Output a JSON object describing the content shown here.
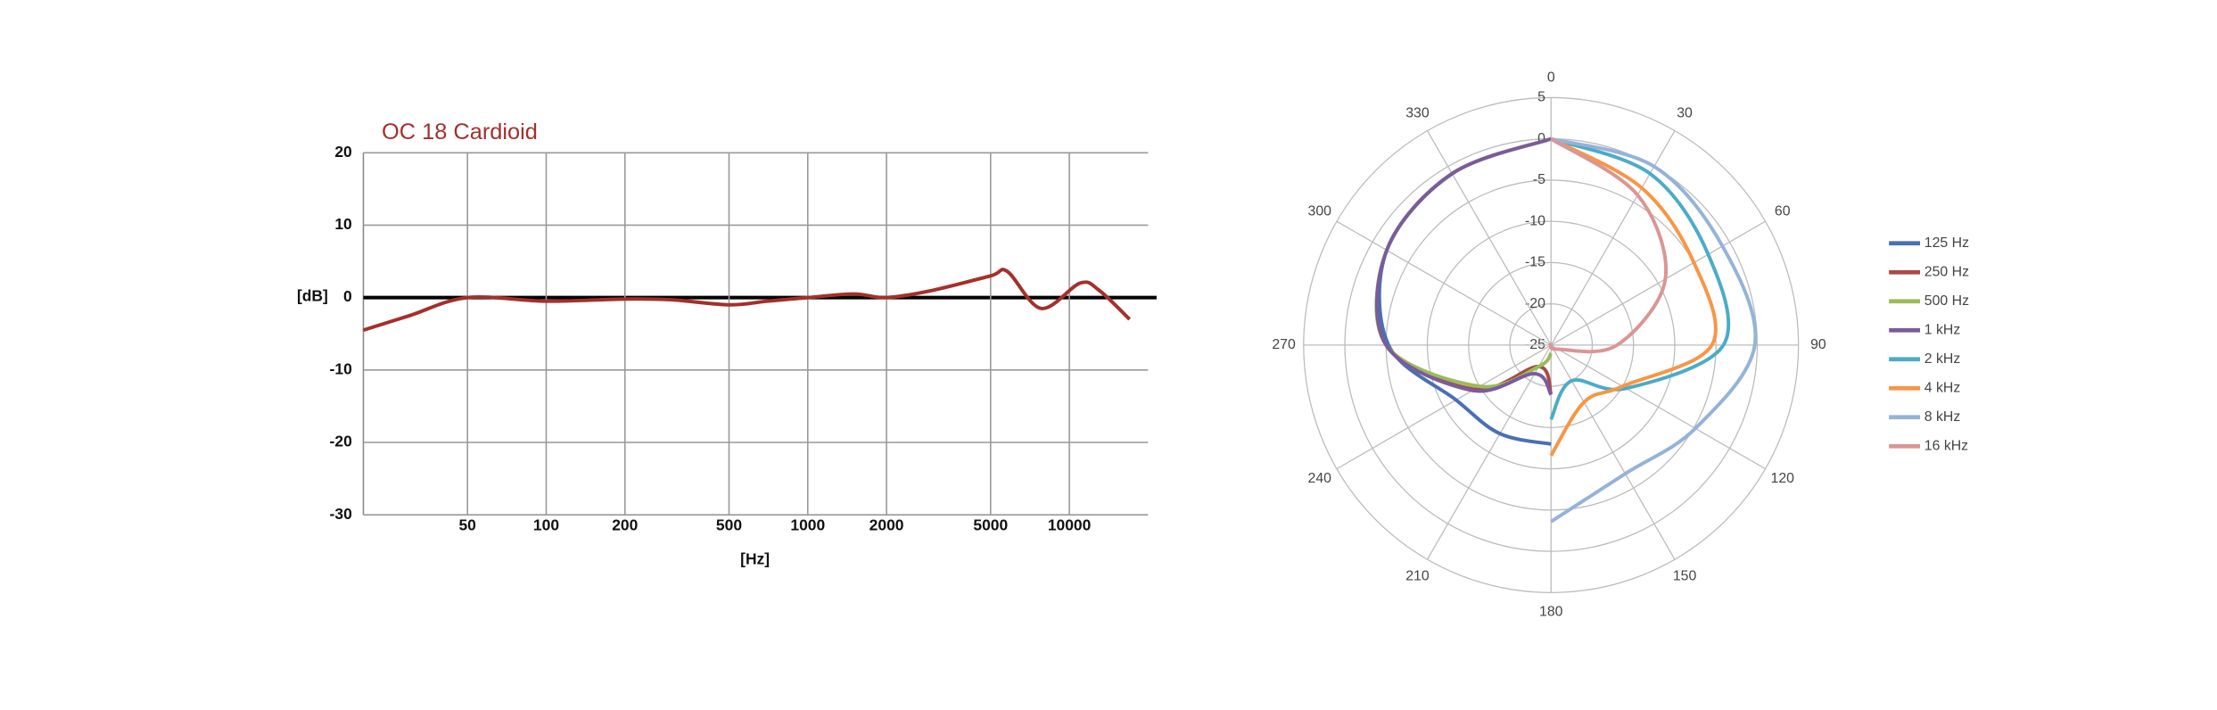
{
  "chart_data": [
    {
      "type": "line",
      "title": "OC 18 Cardioid",
      "xlabel": "[Hz]",
      "ylabel": "[dB]",
      "xscale": "log",
      "xlim": [
        20,
        20000
      ],
      "ylim": [
        -30,
        20
      ],
      "xticks": [
        50,
        100,
        200,
        500,
        1000,
        2000,
        5000,
        10000
      ],
      "yticks": [
        20,
        10,
        0,
        -10,
        -20,
        -30
      ],
      "grid": true,
      "series": [
        {
          "name": "OC 18 Cardioid",
          "color": "#a3302c",
          "x": [
            20,
            30,
            50,
            100,
            200,
            300,
            500,
            700,
            1000,
            1500,
            2000,
            3000,
            5000,
            5800,
            7800,
            11000,
            13000,
            17000
          ],
          "values": [
            -4.5,
            -2.5,
            0,
            -0.5,
            -0.2,
            -0.3,
            -1,
            -0.5,
            0,
            0.5,
            0,
            1,
            3,
            3.6,
            -1.5,
            2,
            1,
            -3
          ]
        }
      ]
    },
    {
      "type": "polar",
      "rlim": [
        -25,
        5
      ],
      "rticks": [
        5,
        0,
        -5,
        -10,
        -15,
        -20,
        -25
      ],
      "angle_ticks": [
        0,
        30,
        60,
        90,
        120,
        150,
        180,
        210,
        240,
        270,
        300,
        330
      ],
      "legend": "right",
      "series": [
        {
          "name": "125 Hz",
          "color": "#4a6fb5",
          "theta": [
            0,
            330,
            300,
            270,
            240,
            210,
            180
          ],
          "values": [
            0,
            -1,
            -2,
            -5.3,
            -11.7,
            -12.6,
            -13
          ]
        },
        {
          "name": "250 Hz",
          "color": "#a84a47",
          "theta": [
            0,
            330,
            300,
            270,
            240,
            210,
            180
          ],
          "values": [
            0,
            -1,
            -2,
            -5,
            -14.3,
            -22,
            -19
          ]
        },
        {
          "name": "500 Hz",
          "color": "#9bbb59",
          "theta": [
            0,
            330,
            300,
            270,
            240,
            210,
            180
          ],
          "values": [
            0,
            -1,
            -2,
            -5,
            -15,
            -22,
            -24
          ]
        },
        {
          "name": "1 kHz",
          "color": "#7a5c9c",
          "theta": [
            0,
            330,
            300,
            270,
            240,
            210,
            180
          ],
          "values": [
            0,
            -1,
            -2,
            -5,
            -14,
            -21,
            -19
          ]
        },
        {
          "name": "2 kHz",
          "color": "#4bacc6",
          "theta": [
            0,
            30,
            60,
            90,
            120,
            150,
            180
          ],
          "values": [
            0,
            -1,
            -3,
            -4.1,
            -14.5,
            -20,
            -16
          ]
        },
        {
          "name": "4 kHz",
          "color": "#f79646",
          "theta": [
            0,
            30,
            60,
            90,
            120,
            150,
            180
          ],
          "values": [
            0,
            -3,
            -5,
            -5.5,
            -15,
            -17,
            -11.6
          ]
        },
        {
          "name": "8 kHz",
          "color": "#95b3d7",
          "theta": [
            0,
            30,
            60,
            90,
            120,
            150,
            180
          ],
          "values": [
            0,
            0,
            -1,
            -0.3,
            -4.8,
            -7,
            -3.6
          ]
        },
        {
          "name": "16 kHz",
          "color": "#da9694",
          "theta": [
            0,
            30,
            60,
            90,
            120,
            150,
            180
          ],
          "values": [
            0,
            -4,
            -9,
            -17,
            -24,
            -25,
            -25
          ]
        }
      ]
    }
  ]
}
